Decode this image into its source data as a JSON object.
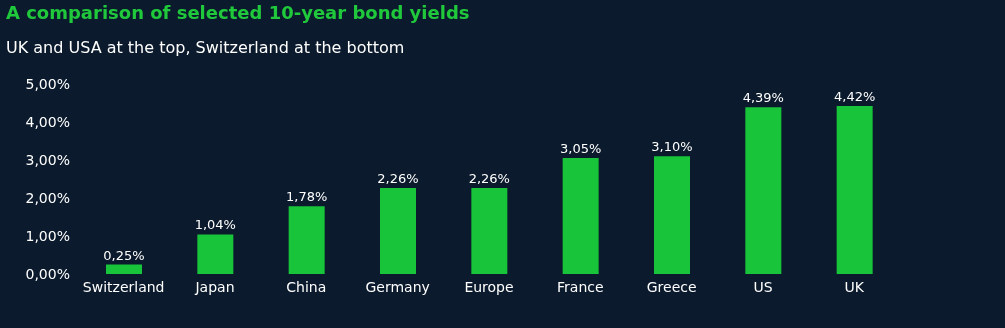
{
  "chart_data": {
    "type": "bar",
    "title": "A comparison of selected 10-year bond yields",
    "subtitle": "UK and USA at the top, Switzerland at the bottom",
    "categories": [
      "Switzerland",
      "Japan",
      "China",
      "Germany",
      "Europe",
      "France",
      "Greece",
      "US",
      "UK"
    ],
    "values": [
      0.25,
      1.04,
      1.78,
      2.26,
      2.26,
      3.05,
      3.1,
      4.39,
      4.42
    ],
    "value_labels": [
      "0,25%",
      "1,04%",
      "1,78%",
      "2,26%",
      "2,26%",
      "3,05%",
      "3,10%",
      "4,39%",
      "4,42%"
    ],
    "color": "#18c43a",
    "ylim": [
      0,
      5
    ],
    "yticks": [
      {
        "value": 0,
        "label": "0,00%"
      },
      {
        "value": 1,
        "label": "1,00%"
      },
      {
        "value": 2,
        "label": "2,00%"
      },
      {
        "value": 3,
        "label": "3,00%"
      },
      {
        "value": 4,
        "label": "4,00%"
      },
      {
        "value": 5,
        "label": "5,00%"
      }
    ],
    "grid": false,
    "legend": false
  }
}
